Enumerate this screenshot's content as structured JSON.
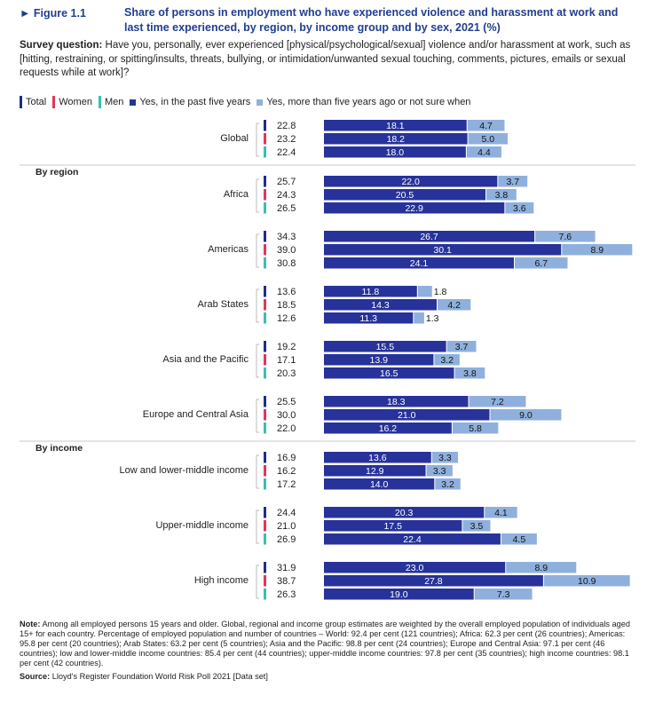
{
  "figure": {
    "label": "► Figure 1.1",
    "title": "Share of persons in employment who have experienced violence and harassment at work and last time experienced, by region, by income group and by sex, 2021 (%)",
    "survey_label": "Survey question:",
    "survey_text": "Have you, personally, ever experienced [physical/psychological/sexual] violence and/or harassment at work, such as [hitting, restraining, or spitting/insults, threats, bullying, or intimidation/unwanted sexual touching, comments, pictures, emails or sexual requests while at work]?"
  },
  "legend": {
    "total": "Total",
    "women": "Women",
    "men": "Men",
    "past5": "Yes, in the past five years",
    "over5": "Yes, more than five years ago or not sure when"
  },
  "colors": {
    "total": "#1f2d8c",
    "women": "#e0375a",
    "men": "#3bbfb2",
    "past5": "#27329a",
    "over5": "#8fb0dc",
    "title": "#1f3f8f"
  },
  "chart_data": {
    "type": "bar",
    "orientation": "horizontal",
    "stacked": true,
    "series_names": [
      "Yes, in the past five years",
      "Yes, more than five years ago or not sure when"
    ],
    "sex_order": [
      "Total",
      "Women",
      "Men"
    ],
    "groups": [
      {
        "heading": "",
        "categories": [
          {
            "name": "Global",
            "rows": [
              {
                "sex": "Total",
                "total": "22.8",
                "past": 18.1,
                "older": 4.7
              },
              {
                "sex": "Women",
                "total": "23.2",
                "past": 18.2,
                "older": 5.0
              },
              {
                "sex": "Men",
                "total": "22.4",
                "past": 18.0,
                "older": 4.4
              }
            ]
          }
        ]
      },
      {
        "heading": "By region",
        "categories": [
          {
            "name": "Africa",
            "rows": [
              {
                "sex": "Total",
                "total": "25.7",
                "past": 22.0,
                "older": 3.7
              },
              {
                "sex": "Women",
                "total": "24.3",
                "past": 20.5,
                "older": 3.8
              },
              {
                "sex": "Men",
                "total": "26.5",
                "past": 22.9,
                "older": 3.6
              }
            ]
          },
          {
            "name": "Americas",
            "rows": [
              {
                "sex": "Total",
                "total": "34.3",
                "past": 26.7,
                "older": 7.6
              },
              {
                "sex": "Women",
                "total": "39.0",
                "past": 30.1,
                "older": 8.9
              },
              {
                "sex": "Men",
                "total": "30.8",
                "past": 24.1,
                "older": 6.7
              }
            ]
          },
          {
            "name": "Arab States",
            "rows": [
              {
                "sex": "Total",
                "total": "13.6",
                "past": 11.8,
                "older": 1.8
              },
              {
                "sex": "Women",
                "total": "18.5",
                "past": 14.3,
                "older": 4.2
              },
              {
                "sex": "Men",
                "total": "12.6",
                "past": 11.3,
                "older": 1.3
              }
            ]
          },
          {
            "name": "Asia and the Pacific",
            "rows": [
              {
                "sex": "Total",
                "total": "19.2",
                "past": 15.5,
                "older": 3.7
              },
              {
                "sex": "Women",
                "total": "17.1",
                "past": 13.9,
                "older": 3.2
              },
              {
                "sex": "Men",
                "total": "20.3",
                "past": 16.5,
                "older": 3.8
              }
            ]
          },
          {
            "name": "Europe and Central Asia",
            "rows": [
              {
                "sex": "Total",
                "total": "25.5",
                "past": 18.3,
                "older": 7.2
              },
              {
                "sex": "Women",
                "total": "30.0",
                "past": 21.0,
                "older": 9.0
              },
              {
                "sex": "Men",
                "total": "22.0",
                "past": 16.2,
                "older": 5.8
              }
            ]
          }
        ]
      },
      {
        "heading": "By income",
        "categories": [
          {
            "name": "Low and lower-middle income",
            "rows": [
              {
                "sex": "Total",
                "total": "16.9",
                "past": 13.6,
                "older": 3.3
              },
              {
                "sex": "Women",
                "total": "16.2",
                "past": 12.9,
                "older": 3.3
              },
              {
                "sex": "Men",
                "total": "17.2",
                "past": 14.0,
                "older": 3.2
              }
            ]
          },
          {
            "name": "Upper-middle income",
            "rows": [
              {
                "sex": "Total",
                "total": "24.4",
                "past": 20.3,
                "older": 4.1
              },
              {
                "sex": "Women",
                "total": "21.0",
                "past": 17.5,
                "older": 3.5
              },
              {
                "sex": "Men",
                "total": "26.9",
                "past": 22.4,
                "older": 4.5
              }
            ]
          },
          {
            "name": "High income",
            "rows": [
              {
                "sex": "Total",
                "total": "31.9",
                "past": 23.0,
                "older": 8.9
              },
              {
                "sex": "Women",
                "total": "38.7",
                "past": 27.8,
                "older": 10.9
              },
              {
                "sex": "Men",
                "total": "26.3",
                "past": 19.0,
                "older": 7.3
              }
            ]
          }
        ]
      }
    ]
  },
  "note": {
    "label": "Note:",
    "text": "Among all employed persons 15 years and older. Global, regional and income group estimates are weighted by the overall employed population of individuals aged 15+ for each country. Percentage of employed population and number of countries – World: 92.4 per cent (121 countries); Africa: 62.3 per cent (26 countries); Americas: 95.8 per cent (20 countries); Arab States: 63.2 per cent (5 countries); Asia and the Pacific: 98.8 per cent (24 countries); Europe and Central Asia: 97.1 per cent (46 countries); low and lower-middle income countries: 85.4 per cent (44 countries); upper-middle income countries: 97.8 per cent (35 countries); high income countries: 98.1 per cent (42 countries)."
  },
  "source": {
    "label": "Source:",
    "text": "Lloyd's Register Foundation World Risk Poll 2021 [Data set]"
  }
}
